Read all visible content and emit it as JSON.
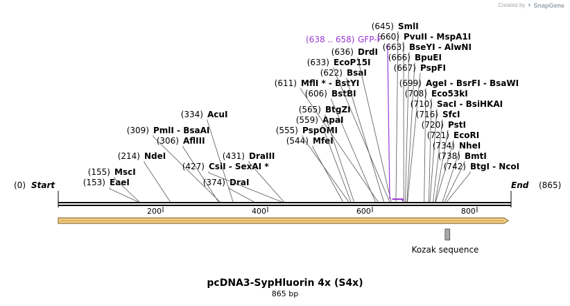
{
  "branding": {
    "created_by": "Created by",
    "app_name": "SnapGene"
  },
  "map": {
    "title": "pcDNA3-SypHluorin 4x (S4x)",
    "length_label": "865 bp",
    "total_bp": 865,
    "start": {
      "label": "Start",
      "pos": "(0)"
    },
    "end": {
      "label": "End",
      "pos": "(865)"
    },
    "ticks": [
      200,
      400,
      600,
      800
    ],
    "sites": [
      {
        "name": "EaeI",
        "pos": "(153)",
        "bp": 153
      },
      {
        "name": "MscI",
        "pos": "(155)",
        "bp": 155
      },
      {
        "name": "NdeI",
        "pos": "(214)",
        "bp": 214
      },
      {
        "name": "AflIII",
        "pos": "(306)",
        "bp": 306
      },
      {
        "name": "PmlI - BsaAI",
        "pos": "(309)",
        "bp": 309
      },
      {
        "name": "AcuI",
        "pos": "(334)",
        "bp": 334
      },
      {
        "name": "DraI",
        "pos": "(374)",
        "bp": 374
      },
      {
        "name": "CsiI - SexAI *",
        "pos": "(427)",
        "bp": 427
      },
      {
        "name": "DraIII",
        "pos": "(431)",
        "bp": 431
      },
      {
        "name": "MfeI",
        "pos": "(544)",
        "bp": 544
      },
      {
        "name": "PspOMI",
        "pos": "(555)",
        "bp": 555
      },
      {
        "name": "ApaI",
        "pos": "(559)",
        "bp": 559
      },
      {
        "name": "BtgZI",
        "pos": "(565)",
        "bp": 565
      },
      {
        "name": "BstBI",
        "pos": "(606)",
        "bp": 606
      },
      {
        "name": "MflI * - BstYI",
        "pos": "(611)",
        "bp": 611
      },
      {
        "name": "BsaI",
        "pos": "(622)",
        "bp": 622
      },
      {
        "name": "EcoP15I",
        "pos": "(633)",
        "bp": 633
      },
      {
        "name": "DrdI",
        "pos": "(636)",
        "bp": 636
      },
      {
        "name": "SmlI",
        "pos": "(645)",
        "bp": 645
      },
      {
        "name": "PvuII - MspA1I",
        "pos": "(660)",
        "bp": 660
      },
      {
        "name": "BseYI - AlwNI",
        "pos": "(663)",
        "bp": 663
      },
      {
        "name": "BpuEI",
        "pos": "(666)",
        "bp": 666
      },
      {
        "name": "PspFI",
        "pos": "(667)",
        "bp": 667
      },
      {
        "name": "AgeI - BsrFI - BsaWI",
        "pos": "(699)",
        "bp": 699
      },
      {
        "name": "Eco53kI",
        "pos": "(708)",
        "bp": 708
      },
      {
        "name": "SacI - BsiHKAI",
        "pos": "(710)",
        "bp": 710
      },
      {
        "name": "SfcI",
        "pos": "(716)",
        "bp": 716
      },
      {
        "name": "PstI",
        "pos": "(720)",
        "bp": 720
      },
      {
        "name": "EcoRI",
        "pos": "(721)",
        "bp": 721
      },
      {
        "name": "NheI",
        "pos": "(734)",
        "bp": 734
      },
      {
        "name": "BmtI",
        "pos": "(738)",
        "bp": 738
      },
      {
        "name": "BtgI - NcoI",
        "pos": "(742)",
        "bp": 742
      }
    ],
    "primer": {
      "name": "GFP-F",
      "range": "(638 .. 658)",
      "start_bp": 638,
      "end_bp": 658
    },
    "feature": {
      "name": "Kozak sequence",
      "start_bp": 739,
      "end_bp": 748
    },
    "colors": {
      "primer": "#9a38d6",
      "arrow_fill": "#f2cf8a",
      "arrow_stroke": "#7a5a1e",
      "feature": "#a9a9a9"
    }
  }
}
